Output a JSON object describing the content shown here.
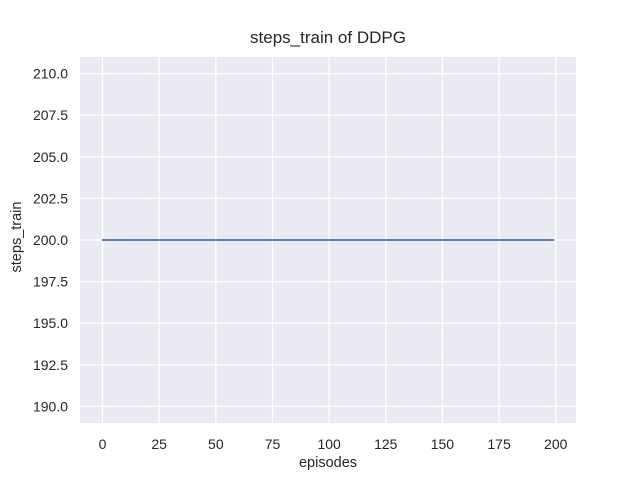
{
  "chart_data": {
    "type": "line",
    "title": "steps_train of DDPG",
    "xlabel": "episodes",
    "ylabel": "steps_train",
    "xlim": [
      -9.95,
      208.95
    ],
    "ylim": [
      189.0,
      211.0
    ],
    "grid": true,
    "legend": "none",
    "x_ticks": {
      "values": [
        0,
        25,
        50,
        75,
        100,
        125,
        150,
        175,
        200
      ],
      "labels": [
        "0",
        "25",
        "50",
        "75",
        "100",
        "125",
        "150",
        "175",
        "200"
      ]
    },
    "y_ticks": {
      "values": [
        190.0,
        192.5,
        195.0,
        197.5,
        200.0,
        202.5,
        205.0,
        207.5,
        210.0
      ],
      "labels": [
        "190.0",
        "192.5",
        "195.0",
        "197.5",
        "200.0",
        "202.5",
        "205.0",
        "207.5",
        "210.0"
      ]
    },
    "series": [
      {
        "name": "steps_train",
        "color": "#4c72b0",
        "x": [
          0,
          199
        ],
        "y": [
          200,
          200
        ]
      }
    ],
    "colors": {
      "figure_background": "#ffffff",
      "plot_background": "#eaeaf2",
      "gridline": "#ffffff",
      "text": "#262626"
    }
  }
}
